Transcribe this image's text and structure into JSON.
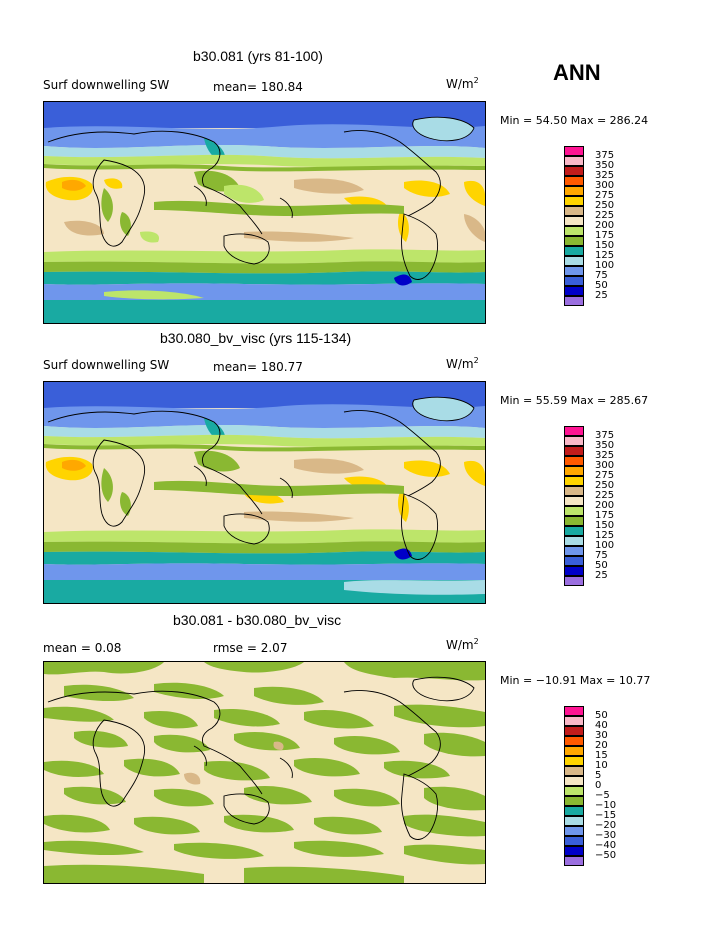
{
  "season": "ANN",
  "units_label": "W/m",
  "units_exp": "2",
  "colors": {
    "c25": "#9b6fe0",
    "c50": "#0000c8",
    "c75": "#3a5fd9",
    "c100": "#6f96ec",
    "c125": "#a9dce6",
    "c150": "#19aaa2",
    "c175": "#8ab832",
    "c200": "#bde56a",
    "c225": "#f5e6c5",
    "c250": "#d9b888",
    "c275": "#ffd400",
    "c300": "#ffa800",
    "c325": "#ff5a00",
    "c350": "#c21c1c",
    "c375": "#f9b8c8",
    "c400": "#ff1493"
  },
  "panels": [
    {
      "title": "b30.081 (yrs 81-100)",
      "left_label": "Surf downwelling SW",
      "stat_label": "mean= 180.84",
      "min_max": "Min =   54.50  Max =  286.24",
      "levels": [
        "375",
        "350",
        "325",
        "300",
        "275",
        "250",
        "225",
        "200",
        "175",
        "150",
        "125",
        "100",
        "75",
        "50",
        "25"
      ]
    },
    {
      "title": "b30.080_bv_visc (yrs 115-134)",
      "left_label": "Surf downwelling SW",
      "stat_label": "mean= 180.77",
      "min_max": "Min =   55.59  Max =  285.67",
      "levels": [
        "375",
        "350",
        "325",
        "300",
        "275",
        "250",
        "225",
        "200",
        "175",
        "150",
        "125",
        "100",
        "75",
        "50",
        "25"
      ]
    },
    {
      "title": "b30.081 - b30.080_bv_visc",
      "left_label": "mean =    0.08",
      "stat_label": "rmse =    2.07",
      "min_max": "Min = −10.91  Max =   10.77",
      "levels": [
        "50",
        "40",
        "30",
        "20",
        "15",
        "10",
        "5",
        "0",
        "−5",
        "−10",
        "−15",
        "−20",
        "−30",
        "−40",
        "−50"
      ]
    }
  ]
}
